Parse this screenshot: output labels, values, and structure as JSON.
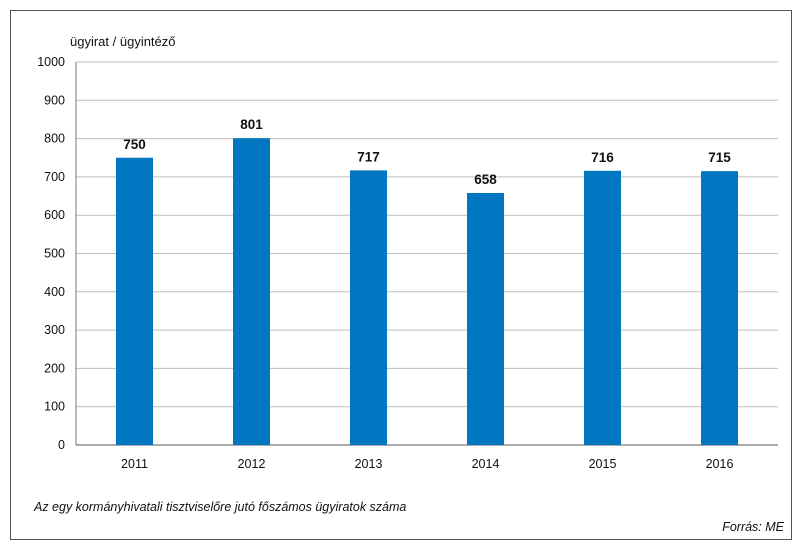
{
  "chart_data": {
    "type": "bar",
    "categories": [
      "2011",
      "2012",
      "2013",
      "2014",
      "2015",
      "2016"
    ],
    "values": [
      750,
      801,
      717,
      658,
      716,
      715
    ],
    "data_labels": [
      "750",
      "801",
      "717",
      "658",
      "716",
      "715"
    ],
    "ylabel": "ügyirat / ügyintéző",
    "ylim": [
      0,
      1000
    ],
    "yticks": [
      "0",
      "100",
      "200",
      "300",
      "400",
      "500",
      "600",
      "700",
      "800",
      "900",
      "1000"
    ],
    "grid": true,
    "bar_color": "#0077c0"
  },
  "caption": "Az egy kormányhivatali tisztviselőre jutó főszámos ügyiratok száma",
  "source": "Forrás: ME"
}
